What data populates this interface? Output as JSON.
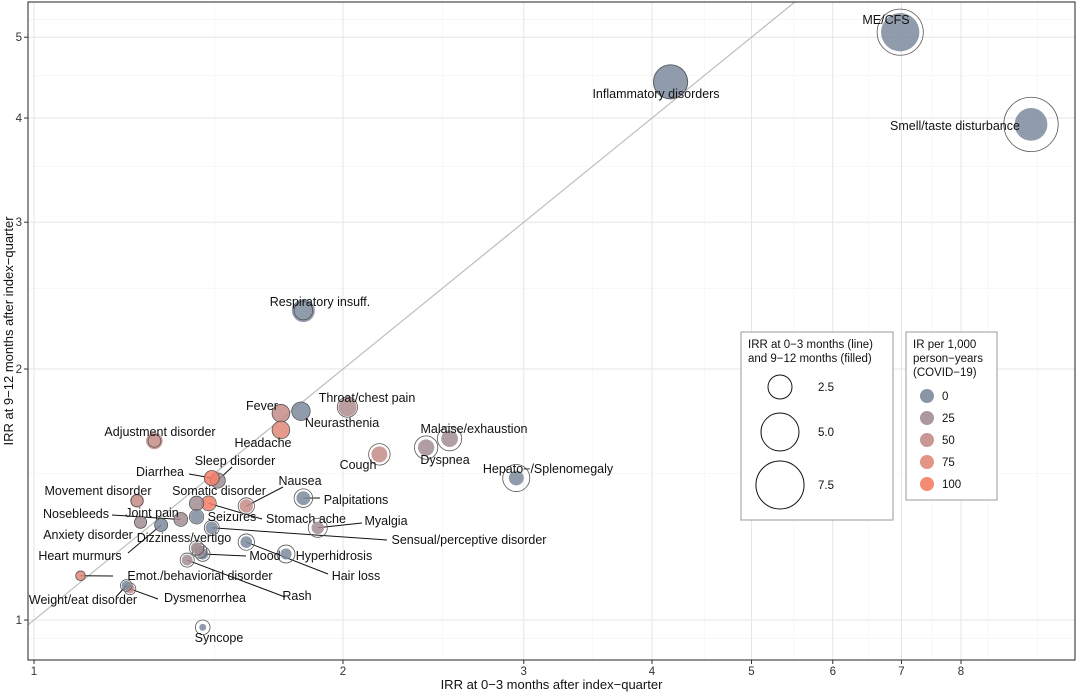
{
  "chart_data": {
    "type": "scatter",
    "xlabel": "IRR at 0−3 months after index−quarter",
    "ylabel": "IRR at 9−12 months after index−quarter",
    "x_scale": "log",
    "y_scale": "log",
    "xlim": [
      0.985,
      10.3
    ],
    "ylim": [
      0.895,
      5.5
    ],
    "x_ticks": [
      1,
      2,
      3,
      4,
      5,
      6,
      7,
      8
    ],
    "y_ticks": [
      1,
      2,
      3,
      4,
      5
    ],
    "grid": true,
    "reference_line": "y = x",
    "size_legend": {
      "title": "IRR at 0−3 months (line)\nand 9−12 months (filled)",
      "values": [
        "2.5",
        "5.0",
        "7.5"
      ],
      "placement": "right"
    },
    "color_legend": {
      "title": "IR per 1,000\nperson−years\n(COVID−19)",
      "values": [
        "0",
        "25",
        "50",
        "75",
        "100"
      ],
      "colors": [
        "#7d8a9c",
        "#a38d93",
        "#c48c88",
        "#e08878",
        "#f57e66"
      ],
      "placement": "right"
    },
    "points": [
      {
        "label": "ME/CFS",
        "x": 6.98,
        "y": 5.07,
        "ir": 0
      },
      {
        "label": "Inflammatory disorders",
        "x": 4.17,
        "y": 4.42,
        "ir": 0
      },
      {
        "label": "Smell/taste disturbance",
        "x": 9.36,
        "y": 3.93,
        "ir": 0
      },
      {
        "label": "Respiratory insuff.",
        "x": 1.83,
        "y": 2.35,
        "ir": 0
      },
      {
        "label": "Throat/chest pain",
        "x": 2.02,
        "y": 1.8,
        "ir": 35
      },
      {
        "label": "Fever",
        "x": 1.74,
        "y": 1.77,
        "ir": 50
      },
      {
        "label": "Neurasthenia",
        "x": 1.82,
        "y": 1.78,
        "ir": 0
      },
      {
        "label": "Headache",
        "x": 1.74,
        "y": 1.69,
        "ir": 75
      },
      {
        "label": "Adjustment disorder",
        "x": 1.31,
        "y": 1.64,
        "ir": 50
      },
      {
        "label": "Malaise/exhaustion",
        "x": 2.54,
        "y": 1.65,
        "ir": 25
      },
      {
        "label": "Dyspnea",
        "x": 2.41,
        "y": 1.61,
        "ir": 25
      },
      {
        "label": "Cough",
        "x": 2.17,
        "y": 1.58,
        "ir": 50
      },
      {
        "label": "Hepato−/Splenomegaly",
        "x": 2.95,
        "y": 1.48,
        "ir": 0
      },
      {
        "label": "Diarrhea",
        "x": 1.49,
        "y": 1.48,
        "ir": 100
      },
      {
        "label": "Sleep disorder",
        "x": 1.51,
        "y": 1.47,
        "ir": 25
      },
      {
        "label": "Nausea",
        "x": 1.61,
        "y": 1.37,
        "ir": 50
      },
      {
        "label": "Movement disorder",
        "x": 1.26,
        "y": 1.39,
        "ir": 50
      },
      {
        "label": "Somatic disorder",
        "x": 1.44,
        "y": 1.38,
        "ir": 25
      },
      {
        "label": "Palpitations",
        "x": 1.83,
        "y": 1.4,
        "ir": 0
      },
      {
        "label": "Stomach ache",
        "x": 1.48,
        "y": 1.38,
        "ir": 100
      },
      {
        "label": "Myalgia",
        "x": 1.89,
        "y": 1.29,
        "ir": 25
      },
      {
        "label": "Nosebleeds",
        "x": 1.39,
        "y": 1.32,
        "ir": 25
      },
      {
        "label": "Joint pain",
        "x": 1.27,
        "y": 1.31,
        "ir": 25
      },
      {
        "label": "Seizures",
        "x": 1.44,
        "y": 1.33,
        "ir": 0
      },
      {
        "label": "Sensual/perceptive disorder",
        "x": 1.49,
        "y": 1.29,
        "ir": 0
      },
      {
        "label": "Anxiety disorder",
        "x": 1.45,
        "y": 1.21,
        "ir": 25
      },
      {
        "label": "Dizziness/vertigo",
        "x": 1.44,
        "y": 1.22,
        "ir": 25
      },
      {
        "label": "Mood",
        "x": 1.46,
        "y": 1.2,
        "ir": 0
      },
      {
        "label": "Hyperhidrosis",
        "x": 1.76,
        "y": 1.2,
        "ir": 0
      },
      {
        "label": "Heart murmurs",
        "x": 1.33,
        "y": 1.3,
        "ir": 0
      },
      {
        "label": "Hair loss",
        "x": 1.61,
        "y": 1.24,
        "ir": 0
      },
      {
        "label": "Emot./behaviorial disorder",
        "x": 1.11,
        "y": 1.13,
        "ir": 75
      },
      {
        "label": "Rash",
        "x": 1.41,
        "y": 1.18,
        "ir": 25
      },
      {
        "label": "Weight/eat disorder",
        "x": 1.23,
        "y": 1.1,
        "ir": 0
      },
      {
        "label": "Dysmenorrhea",
        "x": 1.24,
        "y": 1.09,
        "ir": 50
      },
      {
        "label": "Syncope",
        "x": 1.46,
        "y": 0.98,
        "ir": 0
      }
    ]
  }
}
